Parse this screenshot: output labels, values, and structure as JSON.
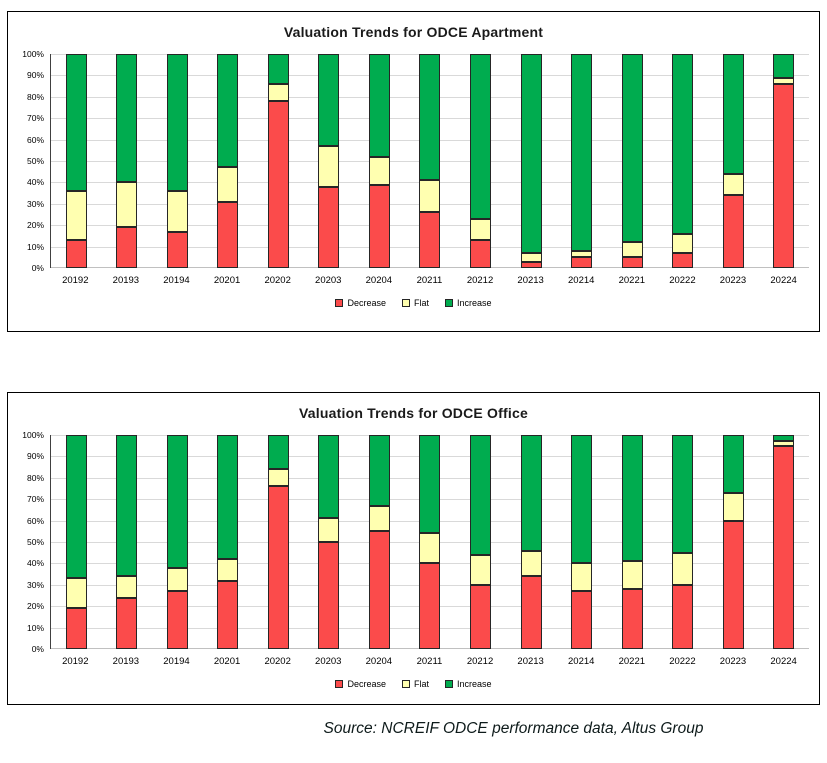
{
  "page": {
    "source_note": "Source: NCREIF ODCE performance data, Altus Group"
  },
  "colors": {
    "decrease": "#FB4B4B",
    "flat": "#FFFFB0",
    "increase": "#00AC4F",
    "segment_border": "#262626",
    "gridline": "#D9D9D9",
    "box_border": "#000000"
  },
  "y_axis": {
    "ticks": [
      "100%",
      "90%",
      "80%",
      "70%",
      "60%",
      "50%",
      "40%",
      "30%",
      "20%",
      "10%",
      "0%"
    ],
    "min": 0,
    "max": 100
  },
  "chart_data": [
    {
      "type": "bar",
      "stacked": true,
      "units": "percent",
      "title": "Valuation Trends for ODCE Apartment",
      "xlabel": "",
      "ylabel": "",
      "ylim": [
        0,
        100
      ],
      "grid": true,
      "legend_position": "bottom",
      "categories": [
        "20192",
        "20193",
        "20194",
        "20201",
        "20202",
        "20203",
        "20204",
        "20211",
        "20212",
        "20213",
        "20214",
        "20221",
        "20222",
        "20223",
        "20224"
      ],
      "series": [
        {
          "name": "Decrease",
          "color": "#FB4B4B",
          "values": [
            13,
            19,
            17,
            31,
            78,
            38,
            39,
            26,
            13,
            3,
            5,
            5,
            7,
            34,
            86
          ]
        },
        {
          "name": "Flat",
          "color": "#FFFFB0",
          "values": [
            23,
            21,
            19,
            16,
            8,
            19,
            13,
            15,
            10,
            4,
            3,
            7,
            9,
            10,
            3
          ]
        },
        {
          "name": "Increase",
          "color": "#00AC4F",
          "values": [
            64,
            60,
            64,
            53,
            14,
            43,
            48,
            59,
            77,
            93,
            92,
            88,
            84,
            56,
            11
          ]
        }
      ]
    },
    {
      "type": "bar",
      "stacked": true,
      "units": "percent",
      "title": "Valuation Trends for ODCE Office",
      "xlabel": "",
      "ylabel": "",
      "ylim": [
        0,
        100
      ],
      "grid": true,
      "legend_position": "bottom",
      "categories": [
        "20192",
        "20193",
        "20194",
        "20201",
        "20202",
        "20203",
        "20204",
        "20211",
        "20212",
        "20213",
        "20214",
        "20221",
        "20222",
        "20223",
        "20224"
      ],
      "series": [
        {
          "name": "Decrease",
          "color": "#FB4B4B",
          "values": [
            19,
            24,
            27,
            32,
            76,
            50,
            55,
            40,
            30,
            34,
            27,
            28,
            30,
            60,
            95
          ]
        },
        {
          "name": "Flat",
          "color": "#FFFFB0",
          "values": [
            14,
            10,
            11,
            10,
            8,
            11,
            12,
            14,
            14,
            12,
            13,
            13,
            15,
            13,
            2
          ]
        },
        {
          "name": "Increase",
          "color": "#00AC4F",
          "values": [
            67,
            66,
            62,
            58,
            16,
            39,
            33,
            46,
            56,
            54,
            60,
            59,
            55,
            27,
            3
          ]
        }
      ]
    }
  ]
}
